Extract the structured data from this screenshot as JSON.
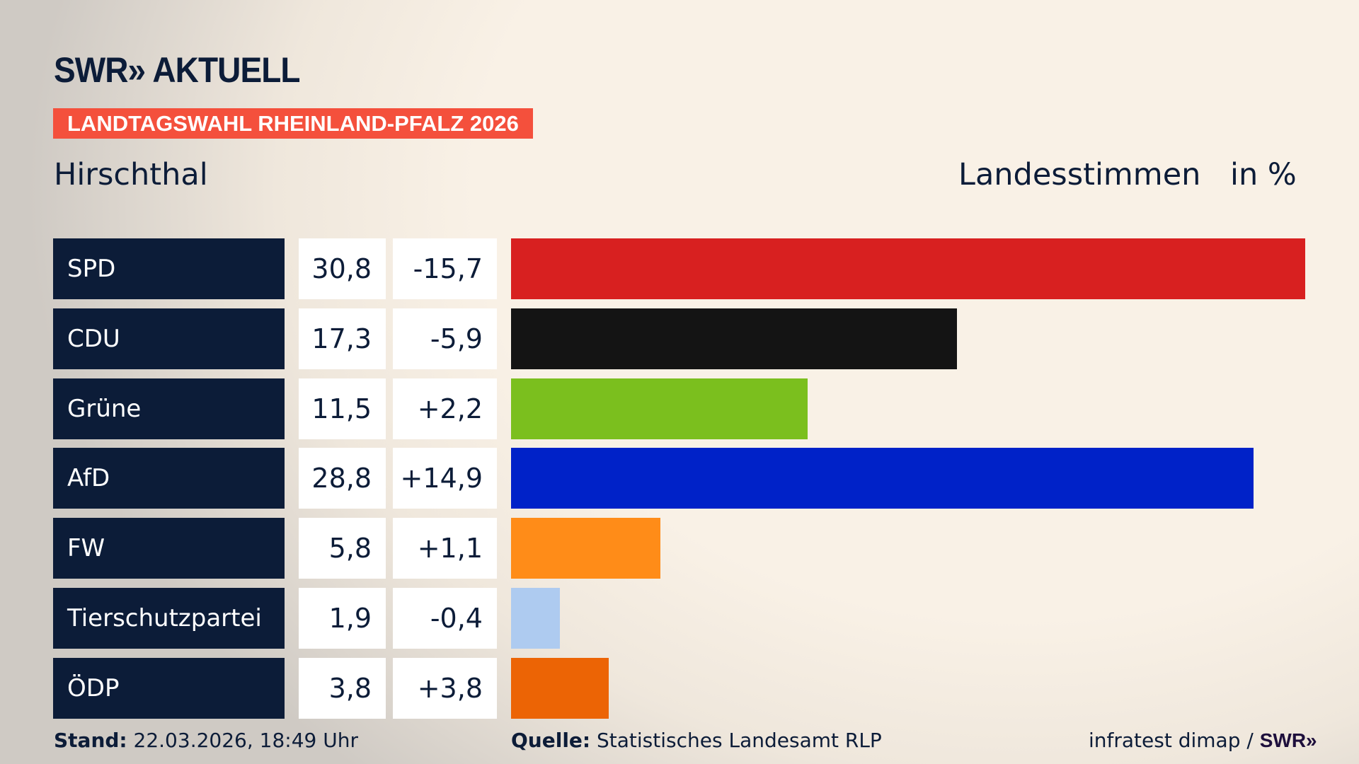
{
  "brand": {
    "logo": "SWR» AKTUELL"
  },
  "badge": "LANDTAGSWAHL RHEINLAND-PFALZ 2026",
  "location": "Hirschthal",
  "header": {
    "measure": "Landesstimmen",
    "unit": "in %"
  },
  "chart_data": {
    "type": "bar",
    "orientation": "horizontal",
    "categories": [
      "SPD",
      "CDU",
      "Grüne",
      "AfD",
      "FW",
      "Tierschutzpartei",
      "ÖDP"
    ],
    "values": [
      30.8,
      17.3,
      11.5,
      28.8,
      5.8,
      1.9,
      3.8
    ],
    "values_label": [
      "30,8",
      "17,3",
      "11,5",
      "28,8",
      "5,8",
      "1,9",
      "3,8"
    ],
    "diffs_label": [
      "-15,7",
      "-5,9",
      "+2,2",
      "+14,9",
      "+1,1",
      "-0,4",
      "+3,8"
    ],
    "colors": [
      "#d82020",
      "#141414",
      "#7bbf1e",
      "#0022c8",
      "#ff8c18",
      "#aecbf0",
      "#ec6405"
    ],
    "grid": false
  },
  "footer": {
    "stand_label": "Stand:",
    "stand_value": "22.03.2026, 18:49 Uhr",
    "source_label": "Quelle:",
    "source_value": "Statistisches Landesamt RLP",
    "credit": "infratest dimap /",
    "credit_logo": "SWR»"
  }
}
